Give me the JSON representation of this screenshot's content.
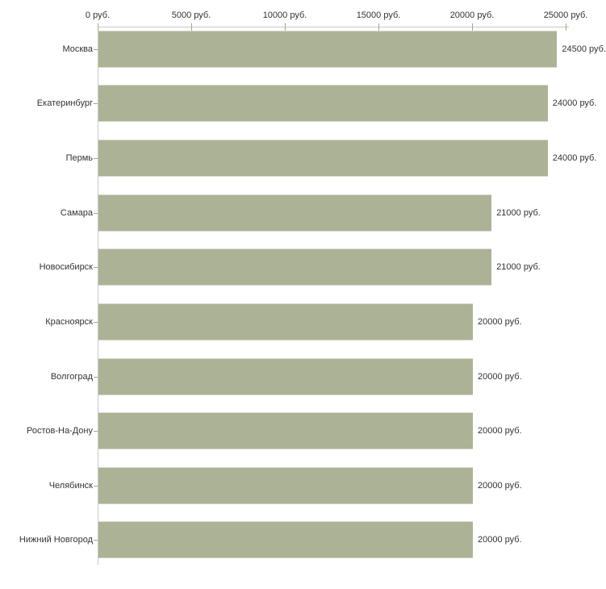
{
  "chart_data": {
    "type": "bar",
    "orientation": "horizontal",
    "title": "",
    "xlabel": "",
    "ylabel": "",
    "unit": "руб.",
    "categories": [
      "Москва",
      "Екатеринбург",
      "Пермь",
      "Самара",
      "Новосибирск",
      "Красноярск",
      "Волгоград",
      "Ростов-На-Дону",
      "Челябинск",
      "Нижний Новгород"
    ],
    "values": [
      24500,
      24000,
      24000,
      21000,
      21000,
      20000,
      20000,
      20000,
      20000,
      20000
    ],
    "value_labels": [
      "24500 руб.",
      "24000 руб.",
      "24000 руб.",
      "21000 руб.",
      "21000 руб.",
      "20000 руб.",
      "20000 руб.",
      "20000 руб.",
      "20000 руб.",
      "20000 руб."
    ],
    "x_ticks": [
      0,
      5000,
      10000,
      15000,
      20000,
      25000
    ],
    "x_tick_labels": [
      "0 руб.",
      "5000 руб.",
      "10000 руб.",
      "15000 руб.",
      "20000 руб.",
      "25000 руб."
    ],
    "xlim": [
      0,
      25000
    ],
    "grid": false,
    "legend_visible": false,
    "colors": {
      "bar_fill": "#acb296",
      "axis_line": "#c9c9c9",
      "tick_mark": "#a9a67d",
      "text": "#333333",
      "background": "#ffffff"
    }
  }
}
